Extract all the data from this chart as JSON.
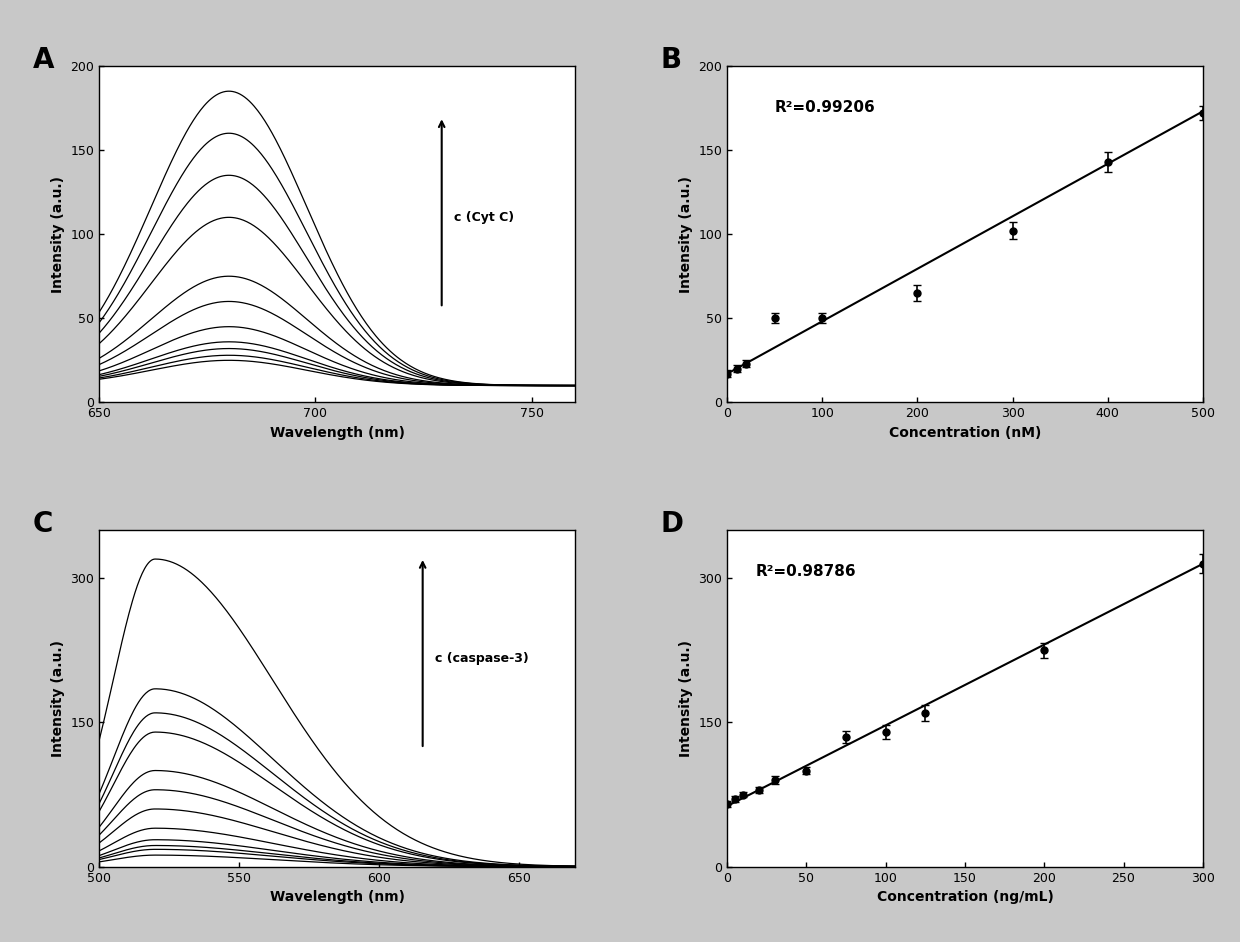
{
  "panel_A": {
    "xlabel": "Wavelength (nm)",
    "ylabel": "Intensity (a.u.)",
    "label": "A",
    "xlim": [
      650,
      760
    ],
    "ylim": [
      0,
      200
    ],
    "xticks": [
      650,
      700,
      750
    ],
    "yticks": [
      0,
      50,
      100,
      150,
      200
    ],
    "arrow_label": "c (Cyt C)",
    "peak_wavelength": 680,
    "peak_values": [
      15,
      18,
      22,
      26,
      35,
      50,
      65,
      100,
      125,
      150,
      175
    ],
    "baseline_values": [
      10,
      10,
      10,
      10,
      10,
      10,
      10,
      10,
      10,
      10,
      10
    ]
  },
  "panel_B": {
    "xlabel": "Concentration (nM)",
    "ylabel": "Intensity (a.u.)",
    "label": "B",
    "xlim": [
      0,
      500
    ],
    "ylim": [
      0,
      200
    ],
    "xticks": [
      0,
      100,
      200,
      300,
      400,
      500
    ],
    "yticks": [
      0,
      50,
      100,
      150,
      200
    ],
    "r2_text": "R²=0.99206",
    "x_data": [
      0,
      10,
      20,
      50,
      100,
      200,
      300,
      400,
      500
    ],
    "y_data": [
      17,
      20,
      23,
      50,
      50,
      65,
      102,
      143,
      172
    ],
    "y_err": [
      2,
      2,
      2,
      3,
      3,
      5,
      5,
      6,
      4
    ],
    "slope": 0.312,
    "intercept": 17.0
  },
  "panel_C": {
    "xlabel": "Wavelength (nm)",
    "ylabel": "Intensity (a.u.)",
    "label": "C",
    "xlim": [
      500,
      670
    ],
    "ylim": [
      0,
      350
    ],
    "xticks": [
      500,
      550,
      600,
      650
    ],
    "yticks": [
      0,
      150,
      300
    ],
    "arrow_label": "c (caspase-3)",
    "peak_wavelength": 520,
    "peak_values": [
      12,
      18,
      22,
      28,
      40,
      60,
      80,
      100,
      140,
      160,
      185,
      320
    ],
    "baseline_values": [
      0,
      0,
      0,
      0,
      0,
      0,
      0,
      0,
      0,
      0,
      0,
      0
    ]
  },
  "panel_D": {
    "xlabel": "Concentration (ng/mL)",
    "ylabel": "Intensity (a.u.)",
    "label": "D",
    "xlim": [
      0,
      300
    ],
    "ylim": [
      0,
      350
    ],
    "xticks": [
      0,
      50,
      100,
      150,
      200,
      250,
      300
    ],
    "yticks": [
      0,
      150,
      300
    ],
    "r2_text": "R²=0.98786",
    "x_data": [
      0,
      5,
      10,
      20,
      30,
      50,
      75,
      100,
      125,
      200,
      300
    ],
    "y_data": [
      65,
      70,
      75,
      80,
      90,
      100,
      135,
      140,
      160,
      225,
      315
    ],
    "y_err": [
      3,
      3,
      3,
      3,
      4,
      4,
      6,
      7,
      8,
      8,
      10
    ],
    "slope": 0.84,
    "intercept": 63.0
  }
}
